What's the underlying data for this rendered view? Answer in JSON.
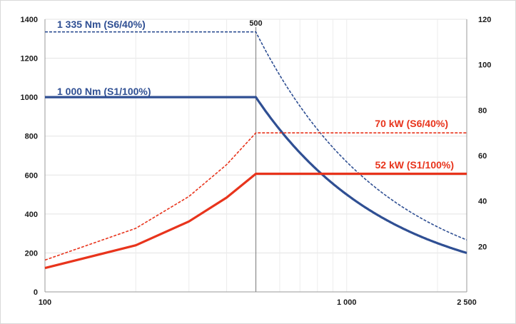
{
  "chart_data": {
    "type": "line",
    "x_scale": "log",
    "xlim": [
      100,
      2500
    ],
    "y_left_lim": [
      0,
      1400
    ],
    "y_right_lim": [
      0,
      120
    ],
    "grid": true,
    "x_ticks": [
      {
        "value": 100,
        "label": "100"
      },
      {
        "value": 500,
        "label": "500",
        "position": "top"
      },
      {
        "value": 1000,
        "label": "1 000"
      },
      {
        "value": 2500,
        "label": "2 500"
      }
    ],
    "y_left_ticks": [
      {
        "value": 0,
        "label": "0"
      },
      {
        "value": 200,
        "label": "200"
      },
      {
        "value": 400,
        "label": "400"
      },
      {
        "value": 600,
        "label": "600"
      },
      {
        "value": 800,
        "label": "800"
      },
      {
        "value": 1000,
        "label": "1000"
      },
      {
        "value": 1200,
        "label": "1200"
      },
      {
        "value": 1400,
        "label": "1400"
      }
    ],
    "y_right_ticks": [
      {
        "value": 20,
        "label": "20"
      },
      {
        "value": 40,
        "label": "40"
      },
      {
        "value": 60,
        "label": "60"
      },
      {
        "value": 80,
        "label": "80"
      },
      {
        "value": 100,
        "label": "100"
      },
      {
        "value": 120,
        "label": "120"
      }
    ],
    "reference_line_x": 500,
    "series": [
      {
        "axis": "left",
        "color": "#2f4f93",
        "style": "solid",
        "label": "1 000 Nm (S1/100%)",
        "x": [
          100,
          500,
          600,
          700,
          800,
          1000,
          1200,
          1500,
          2000,
          2500
        ],
        "y": [
          1000,
          1000,
          833,
          714,
          625,
          500,
          417,
          333,
          250,
          200
        ]
      },
      {
        "axis": "left",
        "color": "#2f4f93",
        "style": "dashed",
        "label": "1 335 Nm (S6/40%)",
        "x": [
          100,
          500,
          600,
          700,
          800,
          1000,
          1200,
          1500,
          2000,
          2500
        ],
        "y": [
          1335,
          1335,
          1113,
          954,
          834,
          668,
          556,
          445,
          334,
          267
        ]
      },
      {
        "axis": "right",
        "color": "#e8341c",
        "style": "solid",
        "label": "52 kW (S1/100%)",
        "x": [
          100,
          200,
          300,
          400,
          500,
          2500
        ],
        "y": [
          10.5,
          20.5,
          31,
          41.5,
          52,
          52
        ]
      },
      {
        "axis": "right",
        "color": "#e8341c",
        "style": "dashed",
        "label": "70 kW (S6/40%)",
        "x": [
          100,
          200,
          300,
          400,
          500,
          2500
        ],
        "y": [
          14,
          28,
          42,
          56,
          70,
          70
        ]
      }
    ]
  }
}
